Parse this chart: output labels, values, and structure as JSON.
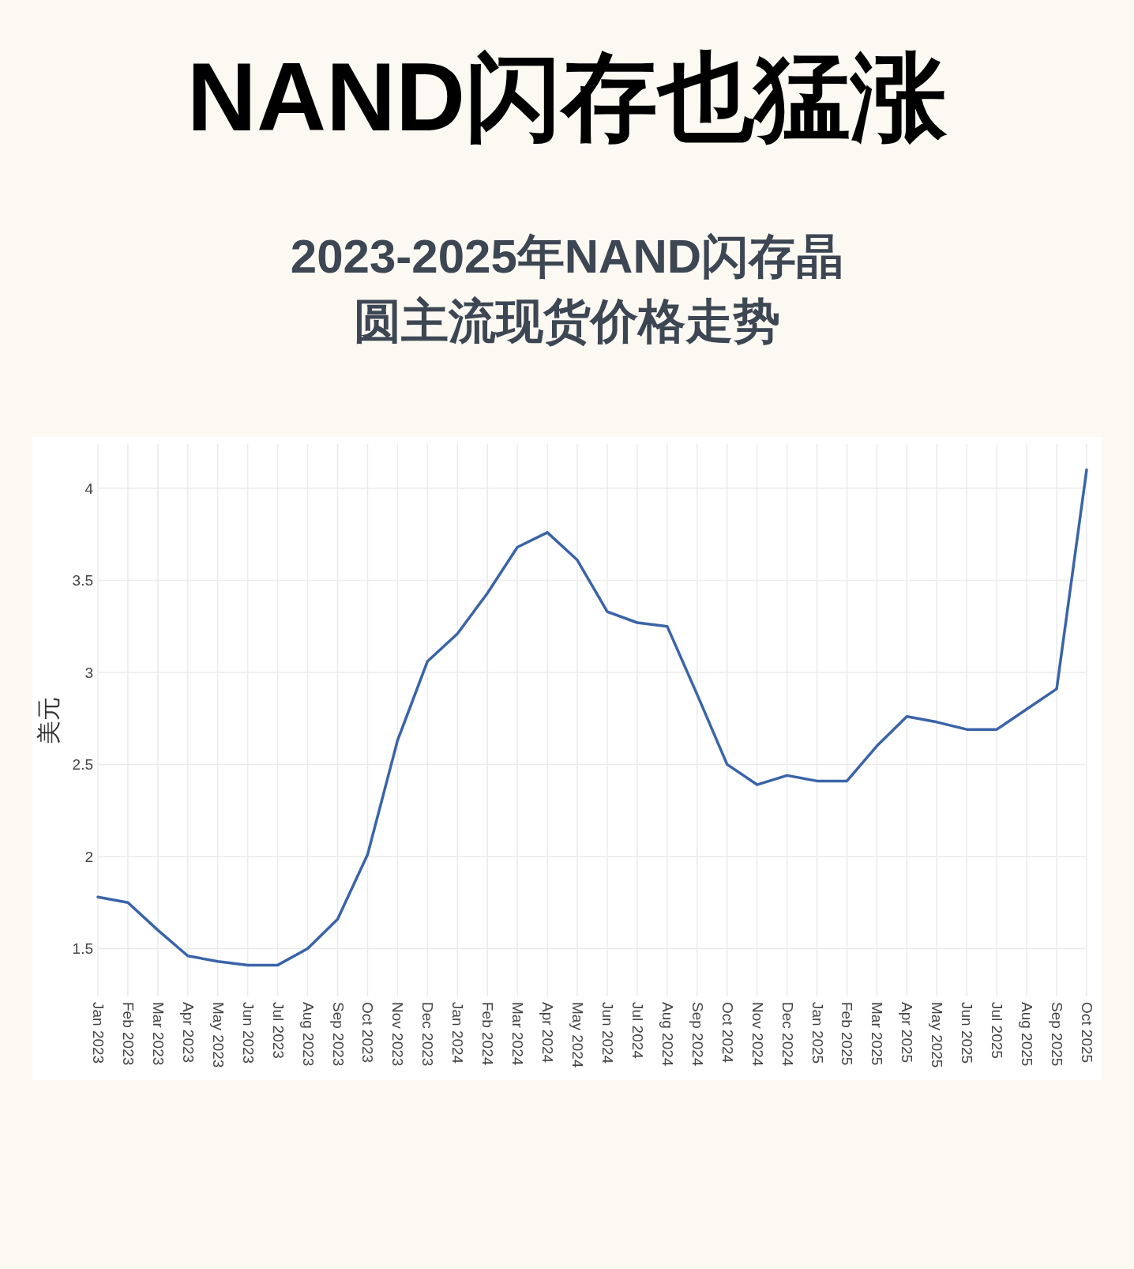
{
  "chart_data": {
    "type": "line",
    "title": "NAND闪存也猛涨",
    "subtitle": "2023-2025年NAND闪存晶圆主流现货价格走势",
    "ylabel": "美元",
    "categories": [
      "Jan 2023",
      "Feb 2023",
      "Mar 2023",
      "Apr 2023",
      "May 2023",
      "Jun 2023",
      "Jul 2023",
      "Aug 2023",
      "Sep 2023",
      "Oct 2023",
      "Nov 2023",
      "Dec 2023",
      "Jan 2024",
      "Feb 2024",
      "Mar 2024",
      "Apr 2024",
      "May 2024",
      "Jun 2024",
      "Jul 2024",
      "Aug 2024",
      "Sep 2024",
      "Oct 2024",
      "Nov 2024",
      "Dec 2024",
      "Jan 2025",
      "Feb 2025",
      "Mar 2025",
      "Apr 2025",
      "May 2025",
      "Jun 2025",
      "Jul 2025",
      "Aug 2025",
      "Sep 2025",
      "Oct 2025"
    ],
    "series": [
      {
        "color": "#3a64a8",
        "values": [
          1.78,
          1.75,
          1.6,
          1.46,
          1.43,
          1.41,
          1.41,
          1.5,
          1.66,
          2.01,
          2.63,
          3.06,
          3.21,
          3.43,
          3.68,
          3.76,
          3.61,
          3.33,
          3.27,
          3.25,
          2.88,
          2.5,
          2.39,
          2.44,
          2.41,
          2.41,
          2.6,
          2.76,
          2.73,
          2.69,
          2.69,
          2.8,
          2.91,
          4.1
        ]
      }
    ],
    "ylim": [
      1.24,
      4.24
    ],
    "yticks": [
      1.5,
      2,
      2.5,
      3,
      3.5,
      4
    ],
    "grid": true
  }
}
